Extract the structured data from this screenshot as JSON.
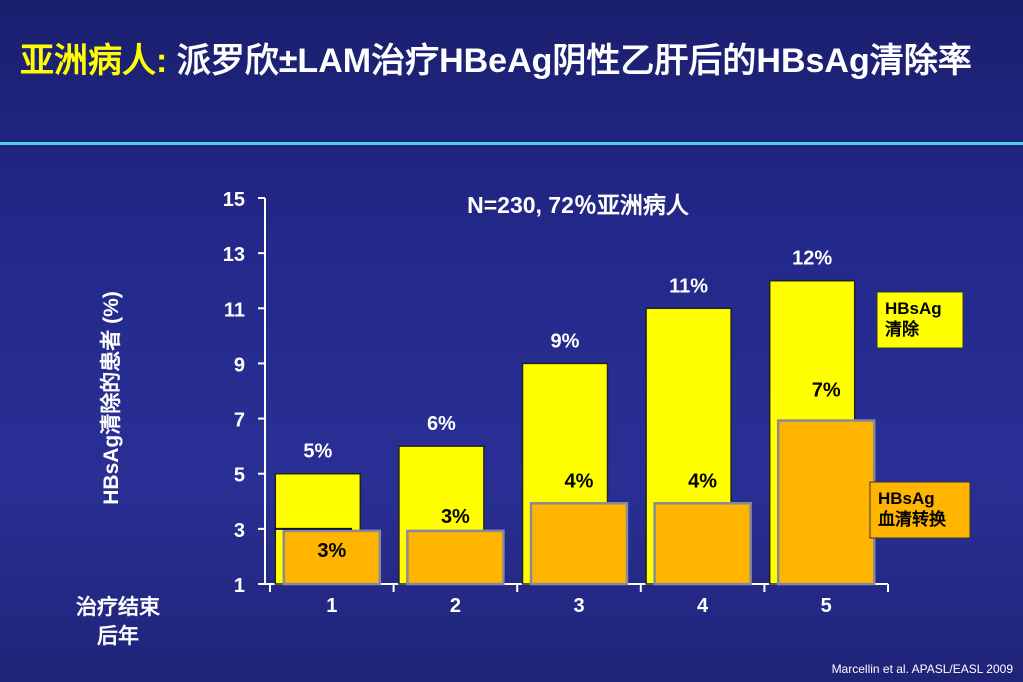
{
  "title": {
    "highlight": "亚洲病人:",
    "rest": " 派罗欣±LAM治疗HBeAg阴性乙肝后的HBsAg清除率"
  },
  "footnote": "Marcellin et al. APASL/EASL 2009",
  "colors": {
    "background": "#23288a",
    "accent_line": "#4fd0e0",
    "clearance": "#ffff00",
    "seroconversion": "#ffb400",
    "title_highlight": "#ffff00"
  },
  "chart_data": {
    "type": "bar",
    "title": "N=230, 72％亚洲病人",
    "ylabel": "HBsAg清除的患者 (%)",
    "xlabel": "治疗结束后年",
    "categories": [
      "1",
      "2",
      "3",
      "4",
      "5"
    ],
    "ylim": [
      1,
      15
    ],
    "yticks": [
      "1",
      "3",
      "5",
      "7",
      "9",
      "11",
      "13",
      "15"
    ],
    "grid": false,
    "series": [
      {
        "name": "HBsAg 清除",
        "color": "#ffff00",
        "values": [
          5,
          6,
          9,
          11,
          12
        ],
        "labels": [
          "5%",
          "6%",
          "9%",
          "11%",
          "12%"
        ]
      },
      {
        "name": "HBsAg 血清转换",
        "color": "#ffb400",
        "values": [
          3,
          3,
          4,
          4,
          7
        ],
        "labels": [
          "3%",
          "3%",
          "4%",
          "4%",
          "7%"
        ]
      }
    ]
  }
}
